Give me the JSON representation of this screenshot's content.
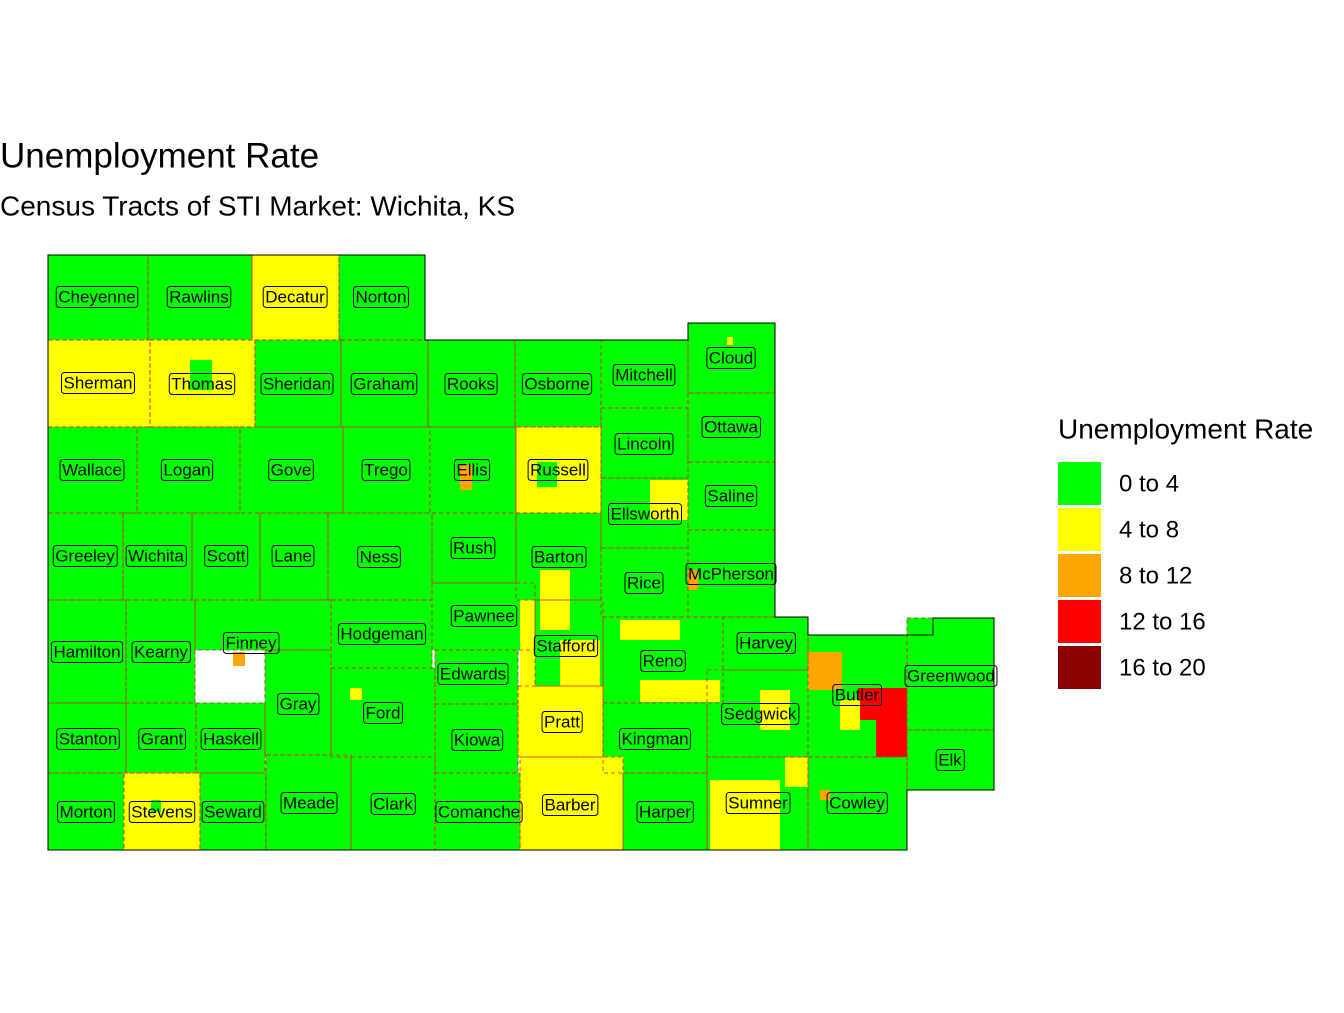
{
  "title": "Unemployment Rate",
  "subtitle": "Census Tracts of STI Market: Wichita, KS",
  "legend": {
    "title": "Unemployment Rate",
    "items": [
      {
        "label": "0 to 4",
        "color": "#00ff00"
      },
      {
        "label": "4 to 8",
        "color": "#ffff00"
      },
      {
        "label": "8 to 12",
        "color": "#ffa500"
      },
      {
        "label": "12 to 16",
        "color": "#ff0000"
      },
      {
        "label": "16 to 20",
        "color": "#8b0000"
      }
    ]
  },
  "counties": [
    {
      "name": "Cheyenne",
      "color": "#00ff00"
    },
    {
      "name": "Rawlins",
      "color": "#00ff00"
    },
    {
      "name": "Decatur",
      "color": "#ffff00"
    },
    {
      "name": "Norton",
      "color": "#00ff00"
    },
    {
      "name": "Sherman",
      "color": "#ffff00"
    },
    {
      "name": "Thomas",
      "color": "#ffff00"
    },
    {
      "name": "Sheridan",
      "color": "#00ff00"
    },
    {
      "name": "Graham",
      "color": "#00ff00"
    },
    {
      "name": "Rooks",
      "color": "#00ff00"
    },
    {
      "name": "Osborne",
      "color": "#00ff00"
    },
    {
      "name": "Mitchell",
      "color": "#00ff00"
    },
    {
      "name": "Cloud",
      "color": "#00ff00"
    },
    {
      "name": "Wallace",
      "color": "#00ff00"
    },
    {
      "name": "Logan",
      "color": "#00ff00"
    },
    {
      "name": "Gove",
      "color": "#00ff00"
    },
    {
      "name": "Trego",
      "color": "#00ff00"
    },
    {
      "name": "Ellis",
      "color": "#00ff00"
    },
    {
      "name": "Russell",
      "color": "#ffff00"
    },
    {
      "name": "Lincoln",
      "color": "#00ff00"
    },
    {
      "name": "Ottawa",
      "color": "#00ff00"
    },
    {
      "name": "Ellsworth",
      "color": "#00ff00"
    },
    {
      "name": "Saline",
      "color": "#00ff00"
    },
    {
      "name": "Greeley",
      "color": "#00ff00"
    },
    {
      "name": "Wichita",
      "color": "#00ff00"
    },
    {
      "name": "Scott",
      "color": "#00ff00"
    },
    {
      "name": "Lane",
      "color": "#00ff00"
    },
    {
      "name": "Ness",
      "color": "#00ff00"
    },
    {
      "name": "Rush",
      "color": "#00ff00"
    },
    {
      "name": "Barton",
      "color": "#00ff00"
    },
    {
      "name": "Rice",
      "color": "#00ff00"
    },
    {
      "name": "McPherson",
      "color": "#00ff00"
    },
    {
      "name": "Hamilton",
      "color": "#00ff00"
    },
    {
      "name": "Kearny",
      "color": "#00ff00"
    },
    {
      "name": "Finney",
      "color": "#00ff00"
    },
    {
      "name": "Hodgeman",
      "color": "#00ff00"
    },
    {
      "name": "Pawnee",
      "color": "#00ff00"
    },
    {
      "name": "Stafford",
      "color": "#00ff00"
    },
    {
      "name": "Reno",
      "color": "#00ff00"
    },
    {
      "name": "Harvey",
      "color": "#00ff00"
    },
    {
      "name": "Stanton",
      "color": "#00ff00"
    },
    {
      "name": "Grant",
      "color": "#00ff00"
    },
    {
      "name": "Haskell",
      "color": "#00ff00"
    },
    {
      "name": "Gray",
      "color": "#00ff00"
    },
    {
      "name": "Ford",
      "color": "#00ff00"
    },
    {
      "name": "Edwards",
      "color": "#00ff00"
    },
    {
      "name": "Kiowa",
      "color": "#00ff00"
    },
    {
      "name": "Pratt",
      "color": "#ffff00"
    },
    {
      "name": "Kingman",
      "color": "#00ff00"
    },
    {
      "name": "Sedgwick",
      "color": "#00ff00"
    },
    {
      "name": "Butler",
      "color": "#00ff00"
    },
    {
      "name": "Greenwood",
      "color": "#00ff00"
    },
    {
      "name": "Elk",
      "color": "#00ff00"
    },
    {
      "name": "Morton",
      "color": "#00ff00"
    },
    {
      "name": "Stevens",
      "color": "#ffff00"
    },
    {
      "name": "Seward",
      "color": "#00ff00"
    },
    {
      "name": "Meade",
      "color": "#00ff00"
    },
    {
      "name": "Clark",
      "color": "#00ff00"
    },
    {
      "name": "Comanche",
      "color": "#00ff00"
    },
    {
      "name": "Barber",
      "color": "#ffff00"
    },
    {
      "name": "Harper",
      "color": "#00ff00"
    },
    {
      "name": "Sumner",
      "color": "#00ff00"
    },
    {
      "name": "Cowley",
      "color": "#00ff00"
    }
  ]
}
